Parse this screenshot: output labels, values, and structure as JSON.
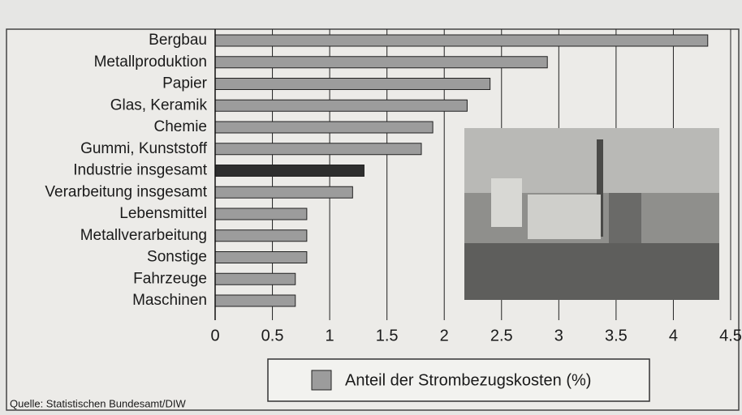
{
  "chart_data": {
    "type": "hbar",
    "source": "Quelle: Statistischen Bundesamt/DIW",
    "categories": [
      "Bergbau",
      "Metallproduktion",
      "Papier",
      "Glas, Keramik",
      "Chemie",
      "Gummi, Kunststoff",
      "Industrie insgesamt",
      "Verarbeitung insgesamt",
      "Lebensmittel",
      "Metallverarbeitung",
      "Sonstige",
      "Fahrzeuge",
      "Maschinen"
    ],
    "series": [
      {
        "name": "Anteil der Strombezugskosten (%)",
        "color": "#9c9c9c",
        "values": [
          4.3,
          2.9,
          2.4,
          2.2,
          1.9,
          1.8,
          1.3,
          1.2,
          0.8,
          0.8,
          0.8,
          0.7,
          0.7
        ]
      }
    ],
    "highlight_category": "Industrie insgesamt",
    "highlight_color": "#2e2e2e",
    "xlim": [
      0,
      4.5
    ],
    "xticks": [
      0,
      0.5,
      1,
      1.5,
      2,
      2.5,
      3,
      3.5,
      4,
      4.5
    ],
    "grid": true
  }
}
